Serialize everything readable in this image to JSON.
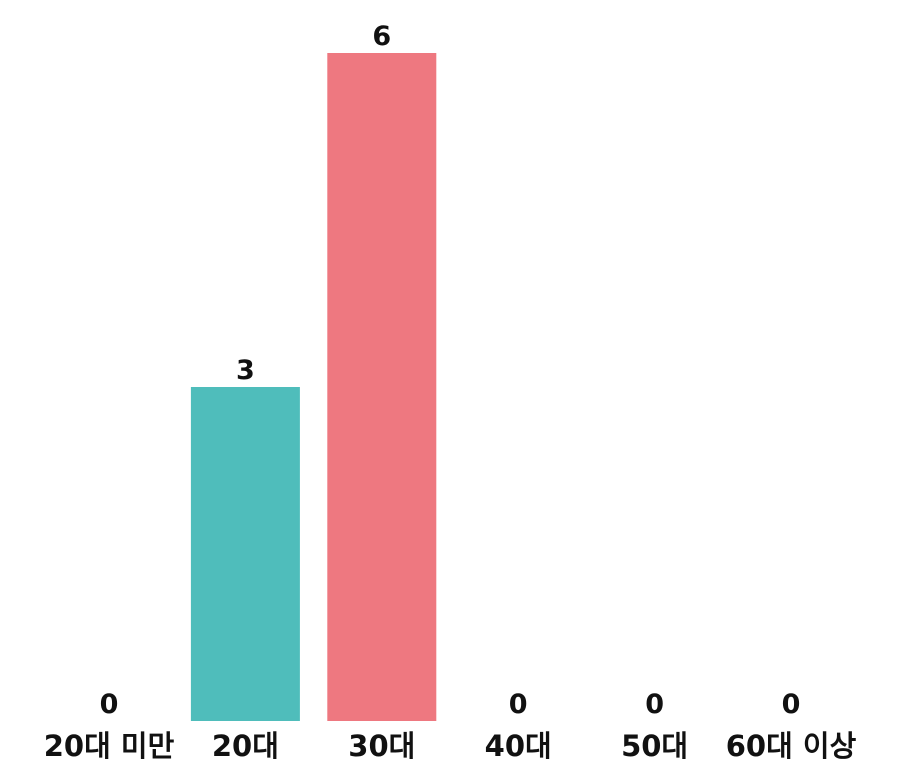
{
  "chart_data": {
    "type": "bar",
    "categories": [
      "20대 미만",
      "20대",
      "30대",
      "40대",
      "50대",
      "60대 이상"
    ],
    "values": [
      0,
      3,
      6,
      0,
      0,
      0
    ],
    "colors": [
      "#4fbdbb",
      "#4fbdbb",
      "#ee7880",
      "#4fbdbb",
      "#4fbdbb",
      "#4fbdbb"
    ],
    "show_value_labels": true,
    "axes_visible": false,
    "grid": false,
    "ylim": [
      0,
      6
    ]
  }
}
